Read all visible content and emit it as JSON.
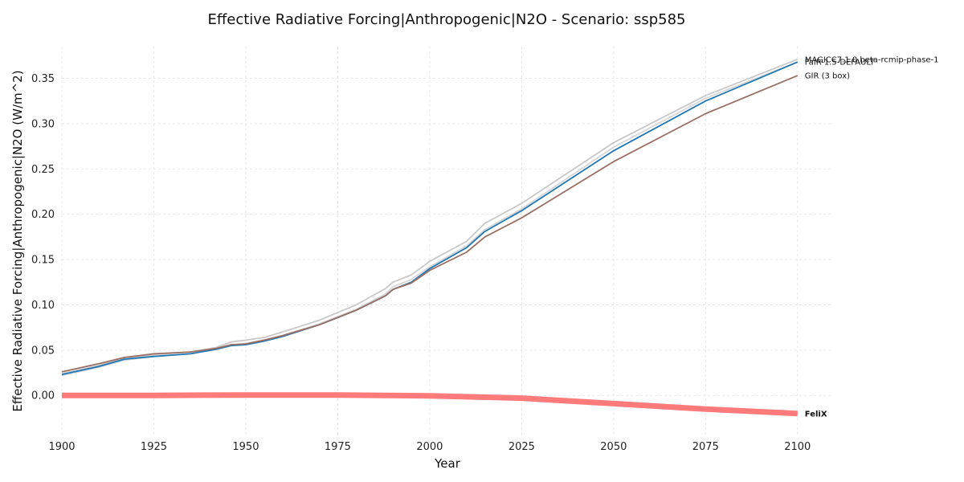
{
  "chart_data": {
    "type": "line",
    "title": "Effective Radiative Forcing|Anthropogenic|N2O - Scenario: ssp585",
    "xlabel": "Year",
    "ylabel": "Effective Radiative Forcing|Anthropogenic|N2O (W/m^2)",
    "xlim": [
      1900,
      2109
    ],
    "ylim": [
      -0.045,
      0.385
    ],
    "xticks": [
      1900,
      1925,
      1950,
      1975,
      2000,
      2025,
      2050,
      2075,
      2100
    ],
    "yticks": [
      0.0,
      0.05,
      0.1,
      0.15,
      0.2,
      0.25,
      0.3,
      0.35
    ],
    "ytick_labels": [
      "0.00",
      "0.05",
      "0.10",
      "0.15",
      "0.20",
      "0.25",
      "0.30",
      "0.35"
    ],
    "grid": true,
    "legend": "inline labels at line ends (right)",
    "series": [
      {
        "name": "MAGICC7.1.0.beta-rcmip-phase-1",
        "color": "#c8c8c8",
        "x": [
          1900,
          1910,
          1917,
          1925,
          1935,
          1942,
          1946,
          1950,
          1955,
          1960,
          1970,
          1980,
          1988,
          1990,
          1995,
          2000,
          2010,
          2015,
          2025,
          2050,
          2075,
          2100
        ],
        "y": [
          0.024,
          0.033,
          0.041,
          0.045,
          0.048,
          0.053,
          0.059,
          0.061,
          0.064,
          0.07,
          0.083,
          0.1,
          0.118,
          0.125,
          0.133,
          0.148,
          0.17,
          0.19,
          0.212,
          0.279,
          0.331,
          0.371
        ]
      },
      {
        "name": "MAGICC7.1.0.beta-rcmip-phase-1",
        "color": "#d6d6d6",
        "x": [
          1900,
          1910,
          1917,
          1925,
          1935,
          1942,
          1946,
          1950,
          1955,
          1960,
          1970,
          1980,
          1988,
          1990,
          1995,
          2000,
          2010,
          2015,
          2025,
          2050,
          2075,
          2100
        ],
        "y": [
          0.022,
          0.031,
          0.039,
          0.043,
          0.046,
          0.051,
          0.056,
          0.057,
          0.061,
          0.066,
          0.079,
          0.095,
          0.112,
          0.12,
          0.128,
          0.142,
          0.165,
          0.183,
          0.206,
          0.274,
          0.328,
          0.368
        ]
      },
      {
        "name": "FaIR-1.5-DEFAULT",
        "color": "#1f77b4",
        "x": [
          1900,
          1910,
          1917,
          1925,
          1935,
          1942,
          1946,
          1950,
          1955,
          1960,
          1970,
          1980,
          1988,
          1990,
          1995,
          2000,
          2010,
          2015,
          2025,
          2050,
          2075,
          2100
        ],
        "y": [
          0.023,
          0.032,
          0.04,
          0.043,
          0.046,
          0.051,
          0.055,
          0.056,
          0.06,
          0.065,
          0.078,
          0.094,
          0.11,
          0.117,
          0.125,
          0.14,
          0.163,
          0.181,
          0.204,
          0.27,
          0.325,
          0.368
        ]
      },
      {
        "name": "GIR (3 box)",
        "color": "#9b6f63",
        "x": [
          1900,
          1910,
          1917,
          1925,
          1935,
          1942,
          1946,
          1950,
          1955,
          1960,
          1970,
          1980,
          1988,
          1990,
          1995,
          2000,
          2010,
          2015,
          2025,
          2050,
          2075,
          2100
        ],
        "y": [
          0.026,
          0.035,
          0.042,
          0.046,
          0.048,
          0.052,
          0.056,
          0.057,
          0.061,
          0.066,
          0.078,
          0.094,
          0.11,
          0.117,
          0.124,
          0.138,
          0.158,
          0.175,
          0.196,
          0.258,
          0.311,
          0.353
        ]
      },
      {
        "name": "FeliX",
        "color": "#ff7b7b",
        "highlight": true,
        "x": [
          1900,
          1925,
          1950,
          1975,
          2000,
          2025,
          2050,
          2075,
          2100
        ],
        "y": [
          0.0,
          0.0,
          0.0005,
          0.0005,
          -0.0005,
          -0.003,
          -0.009,
          -0.015,
          -0.02
        ]
      }
    ],
    "end_labels": [
      {
        "text": "MAGICC7.1.0.beta-rcmip-phase-1",
        "y": 0.371,
        "bold": false
      },
      {
        "text": "FaIR-1.5-DEFAULT",
        "y": 0.368,
        "bold": false
      },
      {
        "text": "GIR (3 box)",
        "y": 0.353,
        "bold": false
      },
      {
        "text": "FeliX",
        "y": -0.02,
        "bold": true
      }
    ]
  }
}
